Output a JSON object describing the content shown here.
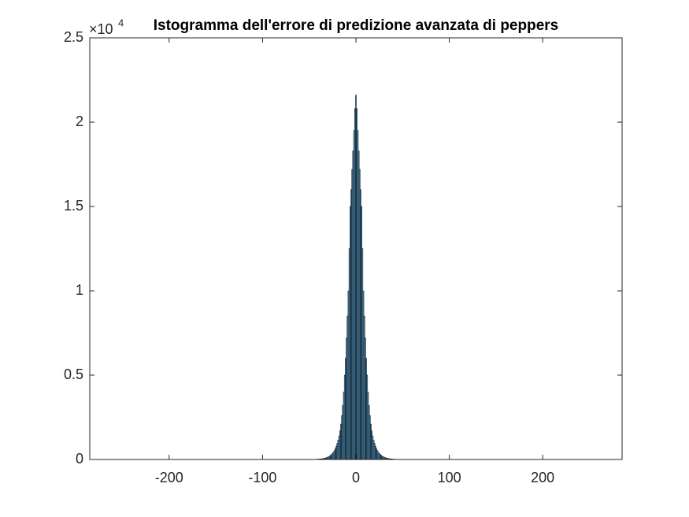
{
  "chart_data": {
    "type": "histogram",
    "title": "Istogramma dell'errore di predizione avanzata di peppers",
    "color": "#0072bd",
    "edge_color": "#000000",
    "xlim": [
      -285,
      285
    ],
    "ylim": [
      0,
      25000
    ],
    "xticks": [
      -200,
      -100,
      0,
      100,
      200
    ],
    "yticks": [
      0,
      {
        "value": 5000,
        "label": "0.5"
      },
      {
        "value": 10000,
        "label": "1"
      },
      {
        "value": 15000,
        "label": "1.5"
      },
      {
        "value": 20000,
        "label": "2"
      },
      {
        "value": 25000,
        "label": "2.5"
      }
    ],
    "y_exponent_base": "×10",
    "y_exponent": "4",
    "bins": [
      -255.5,
      -254.5,
      -253.5,
      -252.5,
      -251.5,
      -250.5,
      -249.5,
      -248.5,
      -247.5,
      -246.5,
      -245.5,
      -244.5,
      -243.5,
      -242.5,
      -241.5,
      -240.5,
      -239.5,
      -238.5,
      -237.5,
      -236.5,
      -235.5,
      -234.5,
      -233.5,
      -232.5,
      -231.5,
      -230.5,
      -229.5,
      -228.5,
      -227.5,
      -226.5,
      -225.5,
      -224.5,
      -223.5,
      -222.5,
      -221.5,
      -220.5,
      -219.5,
      -218.5,
      -217.5,
      -216.5,
      -215.5,
      -214.5,
      -213.5,
      -212.5,
      -211.5,
      -210.5,
      -209.5,
      -208.5,
      -207.5,
      -206.5,
      -205.5,
      -204.5,
      -203.5,
      -202.5,
      -201.5,
      -200.5,
      -199.5,
      -198.5,
      -197.5,
      -196.5,
      -195.5,
      -194.5,
      -193.5,
      -192.5,
      -191.5,
      -190.5,
      -189.5,
      -188.5,
      -187.5,
      -186.5,
      -185.5,
      -184.5,
      -183.5,
      -182.5,
      -181.5,
      -180.5,
      -179.5,
      -178.5,
      -177.5,
      -176.5,
      -175.5,
      -174.5,
      -173.5,
      -172.5,
      -171.5,
      -170.5,
      -169.5,
      -168.5,
      -167.5,
      -166.5,
      -165.5,
      -164.5,
      -163.5,
      -162.5,
      -161.5,
      -160.5,
      -159.5,
      -158.5,
      -157.5,
      -156.5,
      -155.5,
      -154.5,
      -153.5,
      -152.5,
      -151.5,
      -150.5,
      -149.5,
      -148.5,
      -147.5,
      -146.5,
      -145.5,
      -144.5,
      -143.5,
      -142.5,
      -141.5,
      -140.5,
      -139.5,
      -138.5,
      -137.5,
      -136.5,
      -135.5,
      -134.5,
      -133.5,
      -132.5,
      -131.5,
      -130.5,
      -129.5,
      -128.5,
      -127.5,
      -126.5,
      -125.5,
      -124.5,
      -123.5,
      -122.5,
      -121.5,
      -120.5,
      -119.5,
      -118.5,
      -117.5,
      -116.5,
      -115.5,
      -114.5,
      -113.5,
      -112.5,
      -111.5,
      -110.5,
      -109.5,
      -108.5,
      -107.5,
      -106.5,
      -105.5,
      -104.5,
      -103.5,
      -102.5,
      -101.5,
      -100.5,
      -99.5,
      -98.5,
      -97.5,
      -96.5,
      -95.5,
      -94.5,
      -93.5,
      -92.5,
      -91.5,
      -90.5,
      -89.5,
      -88.5,
      -87.5,
      -86.5,
      -85.5,
      -84.5,
      -83.5,
      -82.5,
      -81.5,
      -80.5,
      -79.5,
      -78.5,
      -77.5,
      -76.5,
      -75.5,
      -74.5,
      -73.5,
      -72.5,
      -71.5,
      -70.5,
      -69.5,
      -68.5,
      -67.5,
      -66.5,
      -65.5,
      -64.5,
      -63.5,
      -62.5,
      -61.5,
      -60.5,
      -59.5,
      -58.5,
      -57.5,
      -56.5,
      -55.5,
      -54.5,
      -53.5,
      -52.5,
      -51.5,
      -50.5,
      -49.5,
      -48.5,
      -47.5,
      -46.5,
      -45.5,
      -44.5,
      -43.5,
      -42.5,
      -41.5,
      -40.5,
      -39.5,
      -38.5,
      -37.5,
      -36.5,
      -35.5,
      -34.5,
      -33.5,
      -32.5,
      -31.5,
      -30.5,
      -29.5,
      -28.5,
      -27.5,
      -26.5,
      -25.5,
      -24.5,
      -23.5,
      -22.5,
      -21.5,
      -20.5,
      -19.5,
      -18.5,
      -17.5,
      -16.5,
      -15.5,
      -14.5,
      -13.5,
      -12.5,
      -11.5,
      -10.5,
      -9.5,
      -8.5,
      -7.5,
      -6.5,
      -5.5,
      -4.5,
      -3.5,
      -2.5,
      -1.5,
      -0.5,
      0.5,
      1.5,
      2.5,
      3.5,
      4.5,
      5.5,
      6.5,
      7.5,
      8.5,
      9.5,
      10.5,
      11.5,
      12.5,
      13.5,
      14.5,
      15.5,
      16.5,
      17.5,
      18.5,
      19.5,
      20.5,
      21.5,
      22.5,
      23.5,
      24.5,
      25.5,
      26.5,
      27.5,
      28.5,
      29.5,
      30.5,
      31.5,
      32.5,
      33.5,
      34.5,
      35.5,
      36.5,
      37.5,
      38.5,
      39.5,
      40.5,
      41.5,
      42.5,
      43.5,
      44.5,
      45.5,
      46.5,
      47.5,
      48.5,
      49.5,
      50.5,
      51.5,
      52.5,
      53.5,
      54.5,
      55.5,
      56.5,
      57.5,
      58.5,
      59.5,
      60.5,
      61.5,
      62.5,
      63.5,
      64.5,
      65.5,
      66.5,
      67.5,
      68.5,
      69.5,
      70.5,
      71.5,
      72.5,
      73.5,
      74.5,
      75.5,
      76.5,
      77.5,
      78.5,
      79.5,
      80.5,
      81.5,
      82.5,
      83.5,
      84.5,
      85.5,
      86.5,
      87.5,
      88.5,
      89.5,
      90.5,
      91.5,
      92.5,
      93.5,
      94.5,
      95.5,
      96.5,
      97.5,
      98.5,
      99.5,
      100.5,
      101.5,
      102.5,
      103.5,
      104.5,
      105.5,
      106.5,
      107.5,
      108.5,
      109.5,
      110.5,
      111.5,
      112.5,
      113.5,
      114.5,
      115.5,
      116.5,
      117.5,
      118.5,
      119.5,
      120.5,
      121.5,
      122.5,
      123.5,
      124.5,
      125.5,
      126.5,
      127.5,
      128.5,
      129.5,
      130.5,
      131.5,
      132.5,
      133.5,
      134.5,
      135.5,
      136.5,
      137.5,
      138.5,
      139.5,
      140.5,
      141.5,
      142.5,
      143.5,
      144.5,
      145.5,
      146.5,
      147.5,
      148.5,
      149.5,
      150.5,
      151.5,
      152.5,
      153.5,
      154.5,
      155.5,
      156.5,
      157.5,
      158.5,
      159.5,
      160.5,
      161.5,
      162.5,
      163.5,
      164.5,
      165.5,
      166.5,
      167.5,
      168.5,
      169.5,
      170.5,
      171.5,
      172.5,
      173.5,
      174.5,
      175.5,
      176.5,
      177.5,
      178.5,
      179.5,
      180.5,
      181.5,
      182.5,
      183.5,
      184.5,
      185.5,
      186.5,
      187.5,
      188.5,
      189.5,
      190.5,
      191.5,
      192.5,
      193.5,
      194.5,
      195.5,
      196.5,
      197.5,
      198.5,
      199.5,
      200.5,
      201.5,
      202.5,
      203.5,
      204.5,
      205.5,
      206.5,
      207.5,
      208.5,
      209.5,
      210.5,
      211.5,
      212.5,
      213.5,
      214.5,
      215.5,
      216.5,
      217.5,
      218.5,
      219.5,
      220.5,
      221.5,
      222.5,
      223.5,
      224.5,
      225.5,
      226.5,
      227.5,
      228.5,
      229.5,
      230.5,
      231.5,
      232.5,
      233.5,
      234.5,
      235.5,
      236.5,
      237.5,
      238.5,
      239.5,
      240.5,
      241.5,
      242.5,
      243.5,
      244.5,
      245.5,
      246.5,
      247.5,
      248.5,
      249.5,
      250.5,
      251.5,
      252.5,
      253.5,
      254.5,
      255.5
    ],
    "values": [
      0,
      0,
      0,
      0,
      0,
      0,
      0,
      0,
      0,
      0,
      0,
      0,
      0,
      0,
      0,
      0,
      0,
      0,
      0,
      0,
      0,
      0,
      0,
      0,
      0,
      0,
      0,
      0,
      0,
      0,
      0,
      0,
      0,
      0,
      0,
      0,
      0,
      0,
      0,
      0,
      0,
      0,
      0,
      0,
      0,
      0,
      0,
      0,
      0,
      0,
      0,
      0,
      0,
      0,
      0,
      0,
      0,
      0,
      0,
      0,
      0,
      0,
      0,
      0,
      0,
      0,
      0,
      0,
      0,
      0,
      0,
      0,
      0,
      0,
      0,
      0,
      0,
      0,
      0,
      0,
      0,
      0,
      0,
      0,
      0,
      0,
      0,
      0,
      0,
      0,
      0,
      0,
      0,
      0,
      0,
      0,
      0,
      0,
      0,
      0,
      0,
      0,
      0,
      0,
      0,
      0,
      0,
      0,
      0,
      0,
      0,
      0,
      0,
      0,
      0,
      0,
      0,
      0,
      0,
      0,
      0,
      0,
      0,
      0,
      0,
      0,
      0,
      0,
      0,
      0,
      0,
      0,
      0,
      0,
      0,
      0,
      0,
      0,
      0,
      0,
      0,
      0,
      0,
      0,
      0,
      0,
      0,
      0,
      0,
      0,
      0,
      0,
      0,
      0,
      0,
      1,
      1,
      1,
      1,
      1,
      1,
      1,
      1,
      1,
      1,
      1,
      1,
      1,
      1,
      1,
      1,
      1,
      1,
      1,
      1,
      1,
      1,
      1,
      1,
      1,
      1,
      1,
      1,
      1,
      1,
      1,
      1,
      1,
      1,
      1,
      1,
      1,
      1,
      1,
      1,
      2,
      2,
      2,
      2,
      3,
      3,
      3,
      3,
      4,
      4,
      5,
      5,
      6,
      7,
      8,
      9,
      11,
      13,
      15,
      18,
      22,
      27,
      32,
      38,
      46,
      55,
      66,
      80,
      95,
      115,
      140,
      170,
      205,
      250,
      300,
      360,
      440,
      530,
      640,
      780,
      950,
      1150,
      1400,
      1700,
      2100,
      2600,
      3200,
      4000,
      5000,
      6000,
      7200,
      8500,
      10000,
      12500,
      15000,
      16000,
      17200,
      18300,
      19500,
      20800,
      21600,
      20800,
      19500,
      18300,
      17200,
      16000,
      15000,
      12500,
      10000,
      8500,
      7200,
      6000,
      5000,
      4000,
      3200,
      2600,
      2100,
      1700,
      1400,
      1150,
      950,
      780,
      640,
      530,
      440,
      360,
      300,
      250,
      205,
      170,
      140,
      115,
      95,
      80,
      66,
      55,
      46,
      38,
      32,
      27,
      22,
      18,
      15,
      13,
      11,
      9,
      8,
      7,
      6,
      5,
      5,
      4,
      4,
      3,
      3,
      3,
      3,
      2,
      2,
      2,
      2,
      1,
      1,
      1,
      1,
      1,
      1,
      1,
      1,
      1,
      1,
      1,
      1,
      1,
      1,
      1,
      1,
      1,
      1,
      1,
      1,
      1,
      1,
      1,
      1,
      1,
      1,
      1,
      1,
      1,
      1,
      1,
      1,
      1,
      1,
      1,
      1,
      1,
      1,
      1,
      1,
      0,
      0,
      0,
      0,
      0,
      0,
      0,
      0,
      0,
      0,
      0,
      0,
      0,
      0,
      0,
      0,
      0,
      0,
      0,
      0,
      0,
      0,
      0,
      0,
      0,
      0,
      0,
      0,
      0,
      0,
      0,
      0,
      0,
      0,
      0,
      0,
      0,
      0,
      0,
      0,
      0,
      0,
      0,
      0,
      0,
      0,
      0,
      0,
      0,
      0,
      0,
      0,
      0,
      0,
      0,
      0,
      0,
      0,
      0,
      0,
      0,
      0,
      0,
      0,
      0,
      0,
      0,
      0,
      0,
      0,
      0,
      0,
      0,
      0,
      0,
      0,
      0,
      0,
      0,
      0,
      0,
      0,
      0,
      0,
      0,
      0,
      0,
      0,
      0,
      0,
      0,
      0,
      0,
      0,
      0,
      0,
      0,
      0,
      0,
      0,
      0,
      0,
      0,
      0,
      0,
      0,
      0,
      0,
      0,
      0,
      0,
      0,
      0,
      0,
      0,
      0,
      0,
      0,
      0,
      0,
      0,
      0,
      0,
      0,
      0,
      0,
      0,
      0,
      0,
      0,
      0,
      0,
      0,
      0,
      0,
      0,
      0,
      0,
      0,
      0,
      0,
      0,
      0,
      0,
      0,
      0,
      0,
      0,
      0,
      0,
      0,
      0,
      0,
      0,
      0
    ]
  }
}
